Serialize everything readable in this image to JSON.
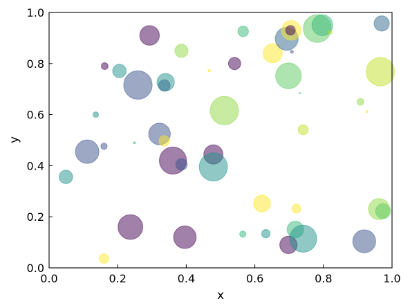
{
  "chart_data": {
    "type": "scatter",
    "title": "",
    "xlabel": "x",
    "ylabel": "y",
    "xlim": [
      0.0,
      1.0
    ],
    "ylim": [
      0.0,
      1.0
    ],
    "xticks": [
      "0.0",
      "0.2",
      "0.4",
      "0.6",
      "0.8",
      "1.0"
    ],
    "yticks": [
      "0.0",
      "0.2",
      "0.4",
      "0.6",
      "0.8",
      "1.0"
    ],
    "grid": false,
    "legend": "none",
    "colormap": "viridis",
    "alpha": 0.5,
    "points": [
      {
        "x": 0.049,
        "y": 0.356,
        "size": 180,
        "color": "#21918c"
      },
      {
        "x": 0.111,
        "y": 0.455,
        "size": 540,
        "color": "#3b528b"
      },
      {
        "x": 0.136,
        "y": 0.6,
        "size": 30,
        "color": "#21918c"
      },
      {
        "x": 0.16,
        "y": 0.476,
        "size": 40,
        "color": "#3b528b"
      },
      {
        "x": 0.162,
        "y": 0.79,
        "size": 45,
        "color": "#440154"
      },
      {
        "x": 0.16,
        "y": 0.036,
        "size": 90,
        "color": "#fde725"
      },
      {
        "x": 0.205,
        "y": 0.771,
        "size": 180,
        "color": "#21918c"
      },
      {
        "x": 0.237,
        "y": 0.16,
        "size": 600,
        "color": "#440154"
      },
      {
        "x": 0.249,
        "y": 0.49,
        "size": 4,
        "color": "#35b779"
      },
      {
        "x": 0.259,
        "y": 0.716,
        "size": 800,
        "color": "#3b528b"
      },
      {
        "x": 0.293,
        "y": 0.91,
        "size": 380,
        "color": "#440154"
      },
      {
        "x": 0.322,
        "y": 0.524,
        "size": 460,
        "color": "#3b528b"
      },
      {
        "x": 0.336,
        "y": 0.497,
        "size": 110,
        "color": "#fde725"
      },
      {
        "x": 0.34,
        "y": 0.727,
        "size": 300,
        "color": "#21918c"
      },
      {
        "x": 0.336,
        "y": 0.714,
        "size": 130,
        "color": "#31688e"
      },
      {
        "x": 0.361,
        "y": 0.42,
        "size": 720,
        "color": "#440154"
      },
      {
        "x": 0.386,
        "y": 0.405,
        "size": 130,
        "color": "#3b528b"
      },
      {
        "x": 0.386,
        "y": 0.85,
        "size": 170,
        "color": "#90d743"
      },
      {
        "x": 0.396,
        "y": 0.12,
        "size": 500,
        "color": "#440154"
      },
      {
        "x": 0.467,
        "y": 0.772,
        "size": 6,
        "color": "#fde725"
      },
      {
        "x": 0.479,
        "y": 0.444,
        "size": 360,
        "color": "#440154"
      },
      {
        "x": 0.479,
        "y": 0.395,
        "size": 780,
        "color": "#21918c"
      },
      {
        "x": 0.511,
        "y": 0.616,
        "size": 800,
        "color": "#90d743"
      },
      {
        "x": 0.541,
        "y": 0.8,
        "size": 150,
        "color": "#440154"
      },
      {
        "x": 0.566,
        "y": 0.926,
        "size": 110,
        "color": "#35b779"
      },
      {
        "x": 0.565,
        "y": 0.132,
        "size": 40,
        "color": "#35b779"
      },
      {
        "x": 0.621,
        "y": 0.252,
        "size": 280,
        "color": "#fde725"
      },
      {
        "x": 0.632,
        "y": 0.134,
        "size": 70,
        "color": "#21918c"
      },
      {
        "x": 0.652,
        "y": 0.84,
        "size": 360,
        "color": "#fde725"
      },
      {
        "x": 0.693,
        "y": 0.897,
        "size": 520,
        "color": "#31688e"
      },
      {
        "x": 0.698,
        "y": 0.752,
        "size": 650,
        "color": "#5ec962"
      },
      {
        "x": 0.698,
        "y": 0.09,
        "size": 300,
        "color": "#440154"
      },
      {
        "x": 0.706,
        "y": 0.93,
        "size": 380,
        "color": "#fde725"
      },
      {
        "x": 0.704,
        "y": 0.93,
        "size": 90,
        "color": "#440154"
      },
      {
        "x": 0.708,
        "y": 0.846,
        "size": 8,
        "color": "#3b528b"
      },
      {
        "x": 0.721,
        "y": 0.232,
        "size": 80,
        "color": "#fde725"
      },
      {
        "x": 0.718,
        "y": 0.15,
        "size": 270,
        "color": "#35b779"
      },
      {
        "x": 0.731,
        "y": 0.684,
        "size": 2,
        "color": "#35b779"
      },
      {
        "x": 0.741,
        "y": 0.541,
        "size": 100,
        "color": "#c2df23"
      },
      {
        "x": 0.741,
        "y": 0.114,
        "size": 720,
        "color": "#21918c"
      },
      {
        "x": 0.782,
        "y": 0.937,
        "size": 760,
        "color": "#5ec962"
      },
      {
        "x": 0.797,
        "y": 0.95,
        "size": 430,
        "color": "#35b779"
      },
      {
        "x": 0.82,
        "y": 0.922,
        "size": 12,
        "color": "#c2df23"
      },
      {
        "x": 0.908,
        "y": 0.65,
        "size": 45,
        "color": "#90d743"
      },
      {
        "x": 0.919,
        "y": 0.104,
        "size": 520,
        "color": "#3b528b"
      },
      {
        "x": 0.927,
        "y": 0.612,
        "size": 4,
        "color": "#fde725"
      },
      {
        "x": 0.962,
        "y": 0.23,
        "size": 440,
        "color": "#90d743"
      },
      {
        "x": 0.966,
        "y": 0.768,
        "size": 800,
        "color": "#c2df23"
      },
      {
        "x": 0.97,
        "y": 0.957,
        "size": 230,
        "color": "#31688e"
      },
      {
        "x": 0.974,
        "y": 0.222,
        "size": 220,
        "color": "#5ec962"
      }
    ]
  }
}
